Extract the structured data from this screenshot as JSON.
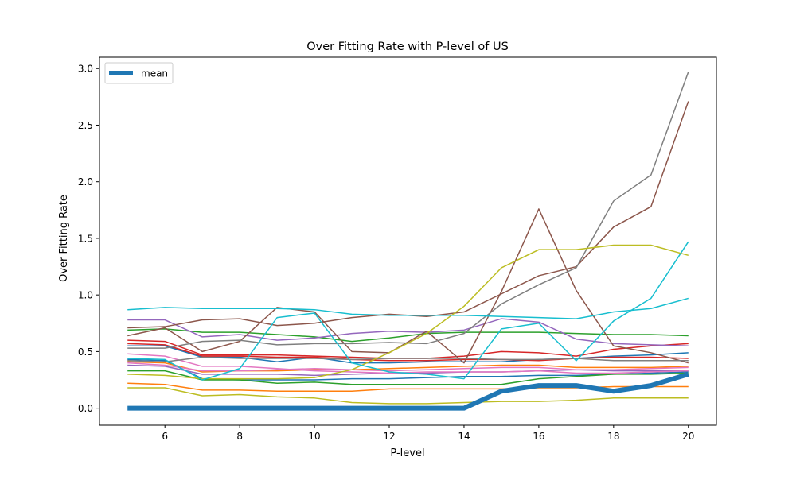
{
  "chart_data": {
    "type": "line",
    "title": "Over Fitting Rate with P-level of US",
    "xlabel": "P-level",
    "ylabel": "Over Fitting Rate",
    "x": [
      5,
      6,
      7,
      8,
      9,
      10,
      11,
      12,
      13,
      14,
      15,
      16,
      17,
      18,
      19,
      20
    ],
    "xlim": [
      4.25,
      20.75
    ],
    "ylim": [
      -0.15,
      3.1
    ],
    "xticks": [
      "6",
      "8",
      "10",
      "12",
      "14",
      "16",
      "18",
      "20"
    ],
    "yticks": [
      "0.0",
      "0.5",
      "1.0",
      "1.5",
      "2.0",
      "2.5",
      "3.0"
    ],
    "grid": false,
    "legend": {
      "position": "top-left",
      "entries": [
        "mean"
      ]
    },
    "series": [
      {
        "color": "#1f77b4",
        "values": [
          0.43,
          0.42,
          0.26,
          0.25,
          0.25,
          0.25,
          0.26,
          0.26,
          0.27,
          0.28,
          0.28,
          0.29,
          0.29,
          0.3,
          0.31,
          0.32
        ]
      },
      {
        "color": "#1f77b4",
        "values": [
          0.55,
          0.55,
          0.45,
          0.45,
          0.41,
          0.45,
          0.4,
          0.4,
          0.41,
          0.41,
          0.41,
          0.43,
          0.44,
          0.46,
          0.47,
          0.49
        ]
      },
      {
        "color": "#ff7f0e",
        "values": [
          0.22,
          0.21,
          0.16,
          0.16,
          0.15,
          0.15,
          0.15,
          0.17,
          0.17,
          0.17,
          0.17,
          0.18,
          0.18,
          0.19,
          0.19,
          0.19
        ]
      },
      {
        "color": "#ff7f0e",
        "values": [
          0.41,
          0.4,
          0.32,
          0.33,
          0.33,
          0.34,
          0.34,
          0.35,
          0.36,
          0.37,
          0.38,
          0.38,
          0.36,
          0.36,
          0.36,
          0.37
        ]
      },
      {
        "color": "#2ca02c",
        "values": [
          0.33,
          0.33,
          0.25,
          0.25,
          0.22,
          0.23,
          0.21,
          0.21,
          0.21,
          0.21,
          0.21,
          0.26,
          0.28,
          0.3,
          0.3,
          0.31
        ]
      },
      {
        "color": "#2ca02c",
        "values": [
          0.69,
          0.7,
          0.67,
          0.67,
          0.65,
          0.63,
          0.59,
          0.62,
          0.66,
          0.67,
          0.67,
          0.67,
          0.66,
          0.65,
          0.65,
          0.64
        ]
      },
      {
        "color": "#d62728",
        "values": [
          0.6,
          0.59,
          0.47,
          0.47,
          0.47,
          0.46,
          0.45,
          0.44,
          0.44,
          0.46,
          0.5,
          0.49,
          0.46,
          0.52,
          0.55,
          0.57
        ]
      },
      {
        "color": "#d62728",
        "values": [
          0.57,
          0.56,
          0.46,
          0.46,
          0.45,
          0.45,
          0.43,
          0.42,
          0.42,
          0.43,
          0.43,
          0.42,
          0.44,
          0.45,
          0.45,
          0.44
        ]
      },
      {
        "color": "#9467bd",
        "values": [
          0.78,
          0.78,
          0.63,
          0.65,
          0.6,
          0.62,
          0.66,
          0.68,
          0.67,
          0.69,
          0.79,
          0.76,
          0.61,
          0.57,
          0.56,
          0.55
        ]
      },
      {
        "color": "#9467bd",
        "values": [
          0.38,
          0.37,
          0.3,
          0.3,
          0.3,
          0.29,
          0.3,
          0.31,
          0.31,
          0.32,
          0.32,
          0.33,
          0.34,
          0.33,
          0.33,
          0.33
        ]
      },
      {
        "color": "#8c564b",
        "values": [
          0.64,
          0.71,
          0.5,
          0.59,
          0.89,
          0.85,
          0.5,
          0.49,
          0.68,
          0.4,
          1.03,
          1.76,
          1.04,
          0.55,
          0.49,
          0.4
        ]
      },
      {
        "color": "#8c564b",
        "values": [
          0.71,
          0.72,
          0.78,
          0.79,
          0.73,
          0.75,
          0.8,
          0.83,
          0.81,
          0.85,
          1.01,
          1.17,
          1.25,
          1.6,
          1.78,
          2.71
        ]
      },
      {
        "color": "#e377c2",
        "values": [
          0.48,
          0.46,
          0.37,
          0.37,
          0.35,
          0.33,
          0.32,
          0.31,
          0.32,
          0.32,
          0.32,
          0.33,
          0.31,
          0.31,
          0.32,
          0.33
        ]
      },
      {
        "color": "#e377c2",
        "values": [
          0.4,
          0.38,
          0.33,
          0.33,
          0.34,
          0.35,
          0.34,
          0.33,
          0.34,
          0.35,
          0.36,
          0.36,
          0.34,
          0.34,
          0.35,
          0.36
        ]
      },
      {
        "color": "#7f7f7f",
        "values": [
          0.53,
          0.53,
          0.59,
          0.6,
          0.56,
          0.57,
          0.57,
          0.58,
          0.57,
          0.66,
          0.92,
          1.09,
          1.24,
          1.83,
          2.06,
          2.97
        ]
      },
      {
        "color": "#7f7f7f",
        "values": [
          0.42,
          0.41,
          0.45,
          0.44,
          0.44,
          0.44,
          0.43,
          0.44,
          0.44,
          0.44,
          0.43,
          0.43,
          0.44,
          0.42,
          0.42,
          0.42
        ]
      },
      {
        "color": "#bcbd22",
        "values": [
          0.18,
          0.18,
          0.11,
          0.12,
          0.1,
          0.09,
          0.05,
          0.04,
          0.04,
          0.05,
          0.06,
          0.06,
          0.07,
          0.09,
          0.09,
          0.09
        ]
      },
      {
        "color": "#bcbd22",
        "values": [
          0.3,
          0.29,
          0.26,
          0.26,
          0.26,
          0.27,
          0.34,
          0.49,
          0.66,
          0.9,
          1.24,
          1.4,
          1.4,
          1.44,
          1.44,
          1.35
        ]
      },
      {
        "color": "#17becf",
        "values": [
          0.87,
          0.89,
          0.88,
          0.88,
          0.88,
          0.87,
          0.83,
          0.82,
          0.82,
          0.82,
          0.81,
          0.8,
          0.79,
          0.85,
          0.88,
          0.97
        ]
      },
      {
        "color": "#17becf",
        "values": [
          0.44,
          0.43,
          0.25,
          0.35,
          0.8,
          0.84,
          0.4,
          0.32,
          0.3,
          0.26,
          0.7,
          0.75,
          0.42,
          0.77,
          0.97,
          1.47
        ]
      },
      {
        "name": "mean",
        "color": "#1f77b4",
        "width": 6,
        "values": [
          0.0,
          0.0,
          0.0,
          0.0,
          0.0,
          0.0,
          0.0,
          0.0,
          0.0,
          0.0,
          0.15,
          0.2,
          0.2,
          0.15,
          0.2,
          0.3
        ]
      }
    ]
  }
}
